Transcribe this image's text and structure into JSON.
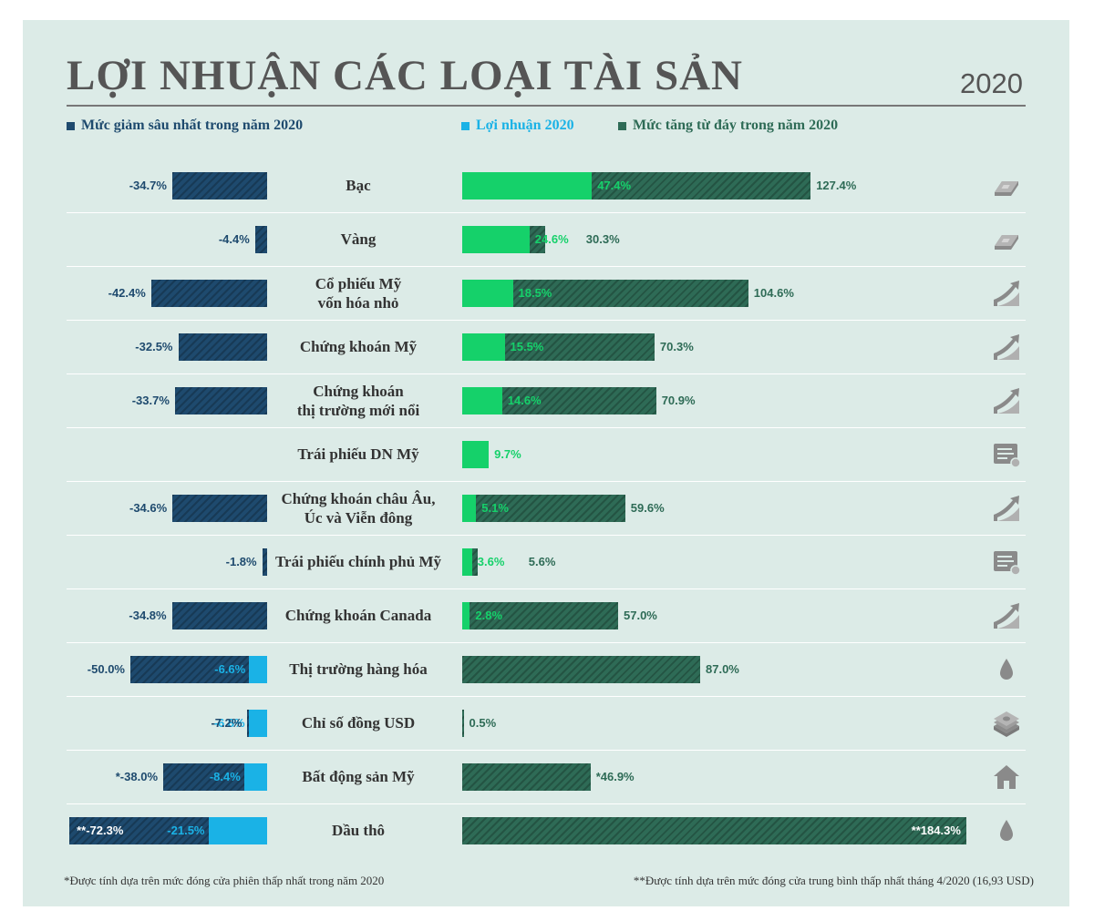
{
  "title": "LỢI NHUẬN CÁC LOẠI TÀI SẢN",
  "year": "2020",
  "legend": [
    {
      "label": "Mức giảm sâu nhất trong năm 2020",
      "color": "#1e4a6e"
    },
    {
      "label": "Lợi nhuận 2020",
      "color": "#1ab2e6"
    },
    {
      "label": "Mức tăng từ đáy trong năm 2020",
      "color": "#2e6b56"
    }
  ],
  "colors": {
    "drawdown": "#1e4a6e",
    "return_neg": "#1ab2e6",
    "return_pos": "#15d16a",
    "rebound": "#2e6b56"
  },
  "notes": {
    "left": "*Được tính dựa trên mức đóng cửa phiên thấp nhất trong năm 2020",
    "right": "**Được tính dựa trên mức đóng cửa trung bình thấp nhất tháng 4/2020 (16,93 USD)"
  },
  "chart_data": {
    "type": "bar",
    "title": "LỢI NHUẬN CÁC LOẠI TÀI SẢN",
    "subtitle": "2020",
    "series": [
      {
        "name": "Mức giảm sâu nhất trong năm 2020",
        "unit": "%"
      },
      {
        "name": "Lợi nhuận 2020",
        "unit": "%"
      },
      {
        "name": "Mức tăng từ đáy trong năm 2020",
        "unit": "%"
      }
    ],
    "rows": [
      {
        "name": [
          "Bạc"
        ],
        "icon": "silver-bar-icon",
        "drawdown": -34.7,
        "drawdown_label": "-34.7%",
        "ret": 47.4,
        "ret_label": "47.4%",
        "rebound": 127.4,
        "rebound_label": "127.4%"
      },
      {
        "name": [
          "Vàng"
        ],
        "icon": "gold-bar-icon",
        "drawdown": -4.4,
        "drawdown_label": "-4.4%",
        "ret": 24.6,
        "ret_label": "24.6%",
        "rebound": 30.3,
        "rebound_label": "30.3%"
      },
      {
        "name": [
          "Cổ phiếu Mỹ",
          "vốn hóa nhỏ"
        ],
        "icon": "growth-chart-icon",
        "drawdown": -42.4,
        "drawdown_label": "-42.4%",
        "ret": 18.5,
        "ret_label": "18.5%",
        "rebound": 104.6,
        "rebound_label": "104.6%"
      },
      {
        "name": [
          "Chứng khoán Mỹ"
        ],
        "icon": "growth-chart-icon",
        "drawdown": -32.5,
        "drawdown_label": "-32.5%",
        "ret": 15.5,
        "ret_label": "15.5%",
        "rebound": 70.3,
        "rebound_label": "70.3%"
      },
      {
        "name": [
          "Chứng khoán",
          "thị trường mới nổi"
        ],
        "icon": "growth-chart-icon",
        "drawdown": -33.7,
        "drawdown_label": "-33.7%",
        "ret": 14.6,
        "ret_label": "14.6%",
        "rebound": 70.9,
        "rebound_label": "70.9%"
      },
      {
        "name": [
          "Trái phiếu DN Mỹ"
        ],
        "icon": "bond-certificate-icon",
        "drawdown": null,
        "drawdown_label": null,
        "ret": 9.7,
        "ret_label": "9.7%",
        "rebound": null,
        "rebound_label": null
      },
      {
        "name": [
          "Chứng khoán châu Âu,",
          "Úc và Viễn đông"
        ],
        "icon": "growth-chart-icon",
        "drawdown": -34.6,
        "drawdown_label": "-34.6%",
        "ret": 5.1,
        "ret_label": "5.1%",
        "rebound": 59.6,
        "rebound_label": "59.6%"
      },
      {
        "name": [
          "Trái phiếu chính phủ Mỹ"
        ],
        "icon": "bond-certificate-icon",
        "drawdown": -1.8,
        "drawdown_label": "-1.8%",
        "ret": 3.6,
        "ret_label": "3.6%",
        "rebound": 5.6,
        "rebound_label": "5.6%"
      },
      {
        "name": [
          "Chứng khoán Canada"
        ],
        "icon": "growth-chart-icon",
        "drawdown": -34.8,
        "drawdown_label": "-34.8%",
        "ret": 2.8,
        "ret_label": "2.8%",
        "rebound": 57.0,
        "rebound_label": "57.0%"
      },
      {
        "name": [
          "Thị trường hàng hóa"
        ],
        "icon": "oil-drop-icon",
        "drawdown": -50.0,
        "drawdown_label": "-50.0%",
        "ret": -6.6,
        "ret_label": "-6.6%",
        "rebound": 87.0,
        "rebound_label": "87.0%"
      },
      {
        "name": [
          "Chỉ số đồng USD"
        ],
        "icon": "money-stack-icon",
        "drawdown": -7.2,
        "drawdown_label": "-7.2%",
        "ret": -6.8,
        "ret_label": "-6.8%",
        "rebound": 0.5,
        "rebound_label": "0.5%"
      },
      {
        "name": [
          "Bất động sản Mỹ"
        ],
        "icon": "house-icon",
        "drawdown": -38.0,
        "drawdown_label": "*-38.0%",
        "ret": -8.4,
        "ret_label": "-8.4%",
        "rebound": 46.9,
        "rebound_label": "*46.9%"
      },
      {
        "name": [
          "Dầu thô"
        ],
        "icon": "oil-drop-icon",
        "drawdown": -72.3,
        "drawdown_label": "**-72.3%",
        "ret": -21.5,
        "ret_label": "-21.5%",
        "rebound": 184.3,
        "rebound_label": "**184.3%"
      }
    ]
  }
}
